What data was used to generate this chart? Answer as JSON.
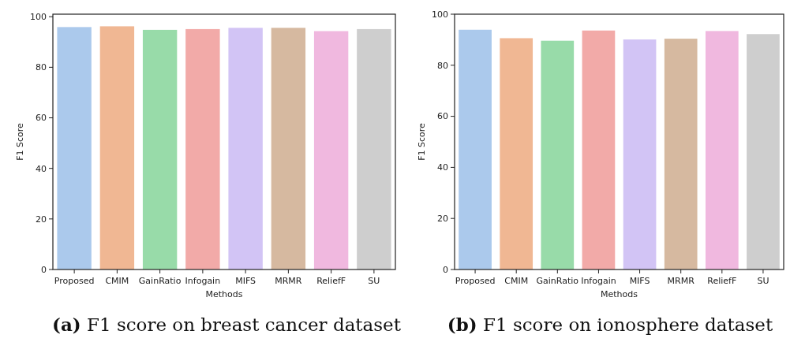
{
  "chart_data": [
    {
      "type": "bar",
      "title": "(a) F1 score on breast cancer dataset",
      "xlabel": "Methods",
      "ylabel": "F1 Score",
      "categories": [
        "Proposed",
        "CMIM",
        "GainRatio",
        "Infogain",
        "MIFS",
        "MRMR",
        "ReliefF",
        "SU"
      ],
      "values": [
        95.9,
        96.2,
        94.8,
        95.1,
        95.6,
        95.6,
        94.3,
        95.1
      ],
      "colors": [
        "#abc9ec",
        "#f0b793",
        "#98dba9",
        "#f2aaa8",
        "#d2c4f5",
        "#d6b9a0",
        "#f0b8df",
        "#cecece"
      ],
      "ylim": [
        0,
        101
      ],
      "yticks": [
        0,
        20,
        40,
        60,
        80,
        100
      ]
    },
    {
      "type": "bar",
      "title": "(b) F1 score on ionosphere dataset",
      "xlabel": "Methods",
      "ylabel": "F1 Score",
      "categories": [
        "Proposed",
        "CMIM",
        "GainRatio",
        "Infogain",
        "MIFS",
        "MRMR",
        "ReliefF",
        "SU"
      ],
      "values": [
        93.9,
        90.6,
        89.6,
        93.6,
        90.1,
        90.4,
        93.4,
        92.2
      ],
      "colors": [
        "#abc9ec",
        "#f0b793",
        "#98dba9",
        "#f2aaa8",
        "#d2c4f5",
        "#d6b9a0",
        "#f0b8df",
        "#cecece"
      ],
      "ylim": [
        0,
        100
      ],
      "yticks": [
        0,
        20,
        40,
        60,
        80,
        100
      ]
    }
  ]
}
